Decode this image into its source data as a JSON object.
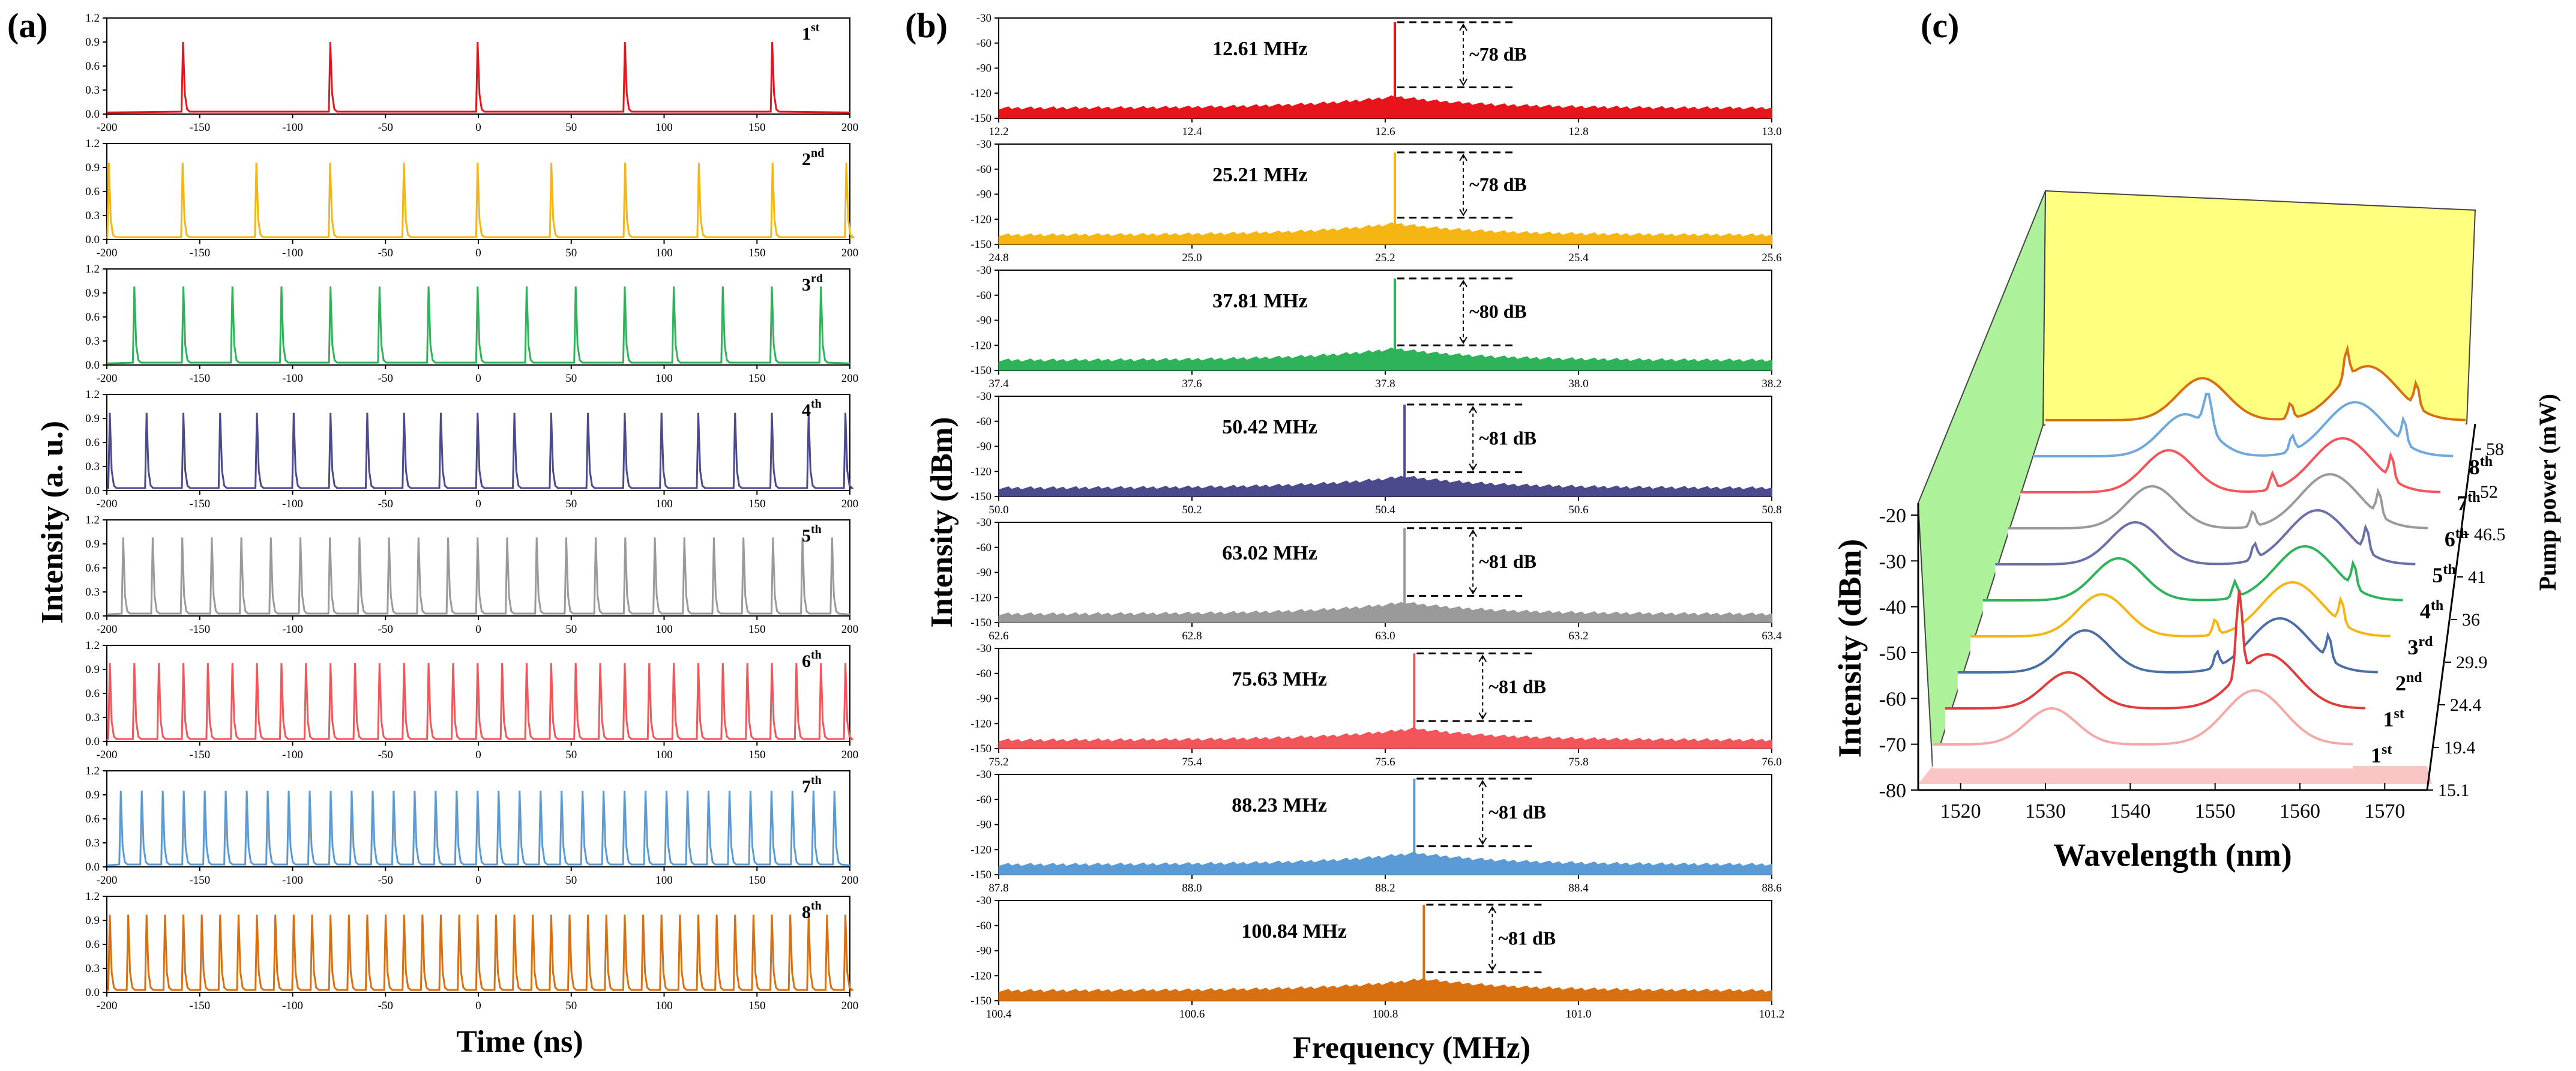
{
  "chart_data": [
    {
      "id": "a",
      "type": "line",
      "panel_label": "(a)",
      "xlabel": "Time (ns)",
      "ylabel": "Intensity (a. u.)",
      "xlim": [
        -200,
        200
      ],
      "ylim": [
        0,
        1.2
      ],
      "xticks": [
        -200,
        -150,
        -100,
        -50,
        0,
        50,
        100,
        150,
        200
      ],
      "yticks": [
        "0.0",
        "0.3",
        "0.6",
        "0.9",
        "1.2"
      ],
      "subplots": [
        {
          "order": "1",
          "sup": "st",
          "color": "#e8141c",
          "period_ns": 79.3,
          "peak": 0.9
        },
        {
          "order": "2",
          "sup": "nd",
          "color": "#f5b614",
          "period_ns": 39.7,
          "peak": 0.96
        },
        {
          "order": "3",
          "sup": "rd",
          "color": "#2fb35a",
          "period_ns": 26.4,
          "peak": 0.98
        },
        {
          "order": "4",
          "sup": "th",
          "color": "#4a4a8c",
          "period_ns": 19.8,
          "peak": 0.97
        },
        {
          "order": "5",
          "sup": "th",
          "color": "#9a9a9a",
          "period_ns": 15.9,
          "peak": 0.98
        },
        {
          "order": "6",
          "sup": "th",
          "color": "#f2555a",
          "period_ns": 13.2,
          "peak": 0.98
        },
        {
          "order": "7",
          "sup": "th",
          "color": "#5b9bd5",
          "period_ns": 11.3,
          "peak": 0.95
        },
        {
          "order": "8",
          "sup": "th",
          "color": "#d87010",
          "period_ns": 9.9,
          "peak": 0.97
        }
      ]
    },
    {
      "id": "b",
      "type": "line",
      "panel_label": "(b)",
      "xlabel": "Frequency (MHz)",
      "ylabel": "Intensity (dBm)",
      "ylim": [
        -150,
        -30
      ],
      "yticks": [
        "-30",
        "-60",
        "-90",
        "-120",
        "-150"
      ],
      "subplots": [
        {
          "color": "#e8141c",
          "xlim": [
            12.2,
            13.0
          ],
          "xticks": [
            "12.2",
            "12.4",
            "12.6",
            "12.8",
            "13.0"
          ],
          "peak_freq": 12.61,
          "label": "12.61 MHz",
          "snr": "~78 dB",
          "peak_dbm": -35,
          "floor_dbm": -140
        },
        {
          "color": "#f5b614",
          "xlim": [
            24.8,
            25.6
          ],
          "xticks": [
            "24.8",
            "25.0",
            "25.2",
            "25.4",
            "25.6"
          ],
          "peak_freq": 25.21,
          "label": "25.21 MHz",
          "snr": "~78 dB",
          "peak_dbm": -40,
          "floor_dbm": -141
        },
        {
          "color": "#2fb35a",
          "xlim": [
            37.4,
            38.2
          ],
          "xticks": [
            "37.4",
            "37.6",
            "37.8",
            "38.0",
            "38.2"
          ],
          "peak_freq": 37.81,
          "label": "37.81 MHz",
          "snr": "~80 dB",
          "peak_dbm": -40,
          "floor_dbm": -140
        },
        {
          "color": "#4a4a8c",
          "xlim": [
            50.0,
            50.8
          ],
          "xticks": [
            "50.0",
            "50.2",
            "50.4",
            "50.6",
            "50.8"
          ],
          "peak_freq": 50.42,
          "label": "50.42 MHz",
          "snr": "~81 dB",
          "peak_dbm": -40,
          "floor_dbm": -142
        },
        {
          "color": "#9a9a9a",
          "xlim": [
            62.6,
            63.4
          ],
          "xticks": [
            "62.6",
            "62.8",
            "63.0",
            "63.2",
            "63.4"
          ],
          "peak_freq": 63.02,
          "label": "63.02 MHz",
          "snr": "~81 dB",
          "peak_dbm": -37,
          "floor_dbm": -142
        },
        {
          "color": "#f2555a",
          "xlim": [
            75.2,
            76.0
          ],
          "xticks": [
            "75.2",
            "75.4",
            "75.6",
            "75.8",
            "76.0"
          ],
          "peak_freq": 75.63,
          "label": "75.63 MHz",
          "snr": "~81 dB",
          "peak_dbm": -36,
          "floor_dbm": -142
        },
        {
          "color": "#5b9bd5",
          "xlim": [
            87.8,
            88.6
          ],
          "xticks": [
            "87.8",
            "88.0",
            "88.2",
            "88.4",
            "88.6"
          ],
          "peak_freq": 88.23,
          "label": "88.23 MHz",
          "snr": "~81 dB",
          "peak_dbm": -35,
          "floor_dbm": -140
        },
        {
          "color": "#d87010",
          "xlim": [
            100.4,
            101.2
          ],
          "xticks": [
            "100.4",
            "100.6",
            "100.8",
            "101.0",
            "101.2"
          ],
          "peak_freq": 100.84,
          "label": "100.84 MHz",
          "snr": "~81 dB",
          "peak_dbm": -35,
          "floor_dbm": -140
        }
      ]
    },
    {
      "id": "c",
      "type": "line",
      "panel_label": "(c)",
      "xlabel": "Wavelength (nm)",
      "ylabel": "Intensity (dBm)",
      "zlabel": "Pump power (mW)",
      "xlim": [
        1515,
        1575
      ],
      "xticks": [
        "1520",
        "1530",
        "1540",
        "1550",
        "1560",
        "1570"
      ],
      "ylim": [
        -80,
        -20
      ],
      "yticks": [
        "-20",
        "-30",
        "-40",
        "-50",
        "-60",
        "-70",
        "-80"
      ],
      "pump_powers_mW": [
        "15.1",
        "19.4",
        "24.4",
        "29.9",
        "36",
        "41",
        "46.5",
        "52",
        "58"
      ],
      "series": [
        {
          "order": "1",
          "sup": "st",
          "pump_mW": 15.1,
          "color": "#f4a9a8"
        },
        {
          "order": "1",
          "sup": "st",
          "pump_mW": 19.4,
          "color": "#e03c3c"
        },
        {
          "order": "2",
          "sup": "nd",
          "pump_mW": 24.4,
          "color": "#4a6fa5"
        },
        {
          "order": "3",
          "sup": "rd",
          "pump_mW": 29.9,
          "color": "#f5b614"
        },
        {
          "order": "4",
          "sup": "th",
          "pump_mW": 36,
          "color": "#2fb35a"
        },
        {
          "order": "5",
          "sup": "th",
          "pump_mW": 41,
          "color": "#6b6fa8"
        },
        {
          "order": "6",
          "sup": "th",
          "pump_mW": 46.5,
          "color": "#9a9a9a"
        },
        {
          "order": "7",
          "sup": "th",
          "pump_mW": 52,
          "color": "#f2555a"
        },
        {
          "order": "8",
          "sup": "th",
          "pump_mW": 58,
          "color": "#6fa8dc"
        },
        {
          "order": "",
          "sup": "",
          "pump_mW": 58,
          "color": "#d87010"
        }
      ]
    }
  ]
}
